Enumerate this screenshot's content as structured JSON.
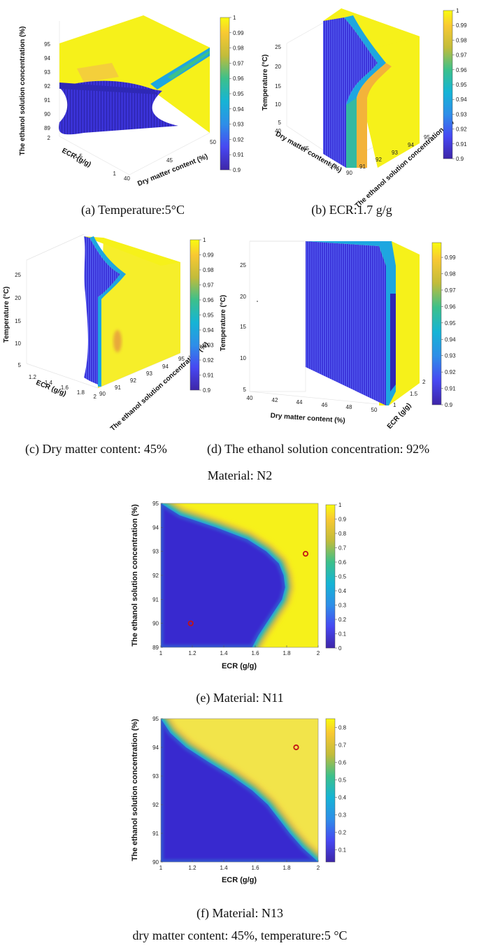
{
  "colors": {
    "yellow": "#f6f11a",
    "blue": "#3b2fd8",
    "cyan": "#1ea6e0",
    "orange": "#f3b33a",
    "green": "#3cbf8c",
    "marker": "#c21414"
  },
  "captions": {
    "a": "(a) Temperature:5°C",
    "b": "(b) ECR:1.7 g/g",
    "c": "(c) Dry matter content: 45%",
    "d": "(d) The ethanol solution concentration: 92%",
    "n2": "Material: N2",
    "e": "(e) Material: N11",
    "f": "(f) Material: N13",
    "footer": "dry matter content: 45%, temperature:5 °C"
  },
  "chart_data": [
    {
      "id": "a",
      "type": "heatmap",
      "title": "Temperature:5°C",
      "axes_labels": {
        "x": "Dry matter content (%)",
        "y": "ECR (g/g)",
        "z": "The ethanol solution concentration (%)"
      },
      "x_ticks": [
        "40",
        "45",
        "50"
      ],
      "y_ticks": [
        "1",
        "1.5",
        "2"
      ],
      "z_ticks": [
        "89",
        "90",
        "91",
        "92",
        "93",
        "94",
        "95"
      ],
      "colorbar": {
        "min": 0.9,
        "max": 1,
        "ticks": [
          "0.9",
          "0.91",
          "0.92",
          "0.93",
          "0.94",
          "0.95",
          "0.96",
          "0.97",
          "0.98",
          "0.99",
          "1"
        ]
      }
    },
    {
      "id": "b",
      "type": "heatmap",
      "title": "ECR:1.7 g/g",
      "axes_labels": {
        "x": "Dry matter content (%)",
        "y": "The ethanol solution concentration (%)",
        "z": "Temperature (°C)"
      },
      "x_ticks": [
        "40",
        "45",
        "50"
      ],
      "y_ticks": [
        "90",
        "91",
        "92",
        "93",
        "94",
        "95"
      ],
      "z_ticks": [
        "5",
        "10",
        "15",
        "20",
        "25"
      ],
      "colorbar": {
        "min": 0.9,
        "max": 1,
        "ticks": [
          "0.9",
          "0.91",
          "0.92",
          "0.93",
          "0.94",
          "0.95",
          "0.96",
          "0.97",
          "0.98",
          "0.99",
          "1"
        ]
      }
    },
    {
      "id": "c",
      "type": "heatmap",
      "title": "Dry matter content: 45%",
      "axes_labels": {
        "x": "ECR (g/g)",
        "y": "The ethanol solution concentration (%)",
        "z": "Temperature (°C)"
      },
      "x_ticks": [
        "1.2",
        "1.4",
        "1.6",
        "1.8",
        "2"
      ],
      "y_ticks": [
        "90",
        "91",
        "92",
        "93",
        "94",
        "95"
      ],
      "z_ticks": [
        "5",
        "10",
        "15",
        "20",
        "25"
      ],
      "colorbar": {
        "min": 0.9,
        "max": 1,
        "ticks": [
          "0.9",
          "0.91",
          "0.92",
          "0.93",
          "0.94",
          "0.95",
          "0.96",
          "0.97",
          "0.98",
          "0.99",
          "1"
        ]
      }
    },
    {
      "id": "d",
      "type": "heatmap",
      "title": "The ethanol solution concentration: 92%",
      "axes_labels": {
        "x": "Dry matter content (%)",
        "y": "ECR (g/g)",
        "z": "Temperature (°C)"
      },
      "x_ticks": [
        "40",
        "42",
        "44",
        "46",
        "48",
        "50"
      ],
      "y_ticks": [
        "1",
        "1.5",
        "2"
      ],
      "z_ticks": [
        "5",
        "10",
        "15",
        "20",
        "25"
      ],
      "colorbar": {
        "min": 0.9,
        "max": 0.999,
        "ticks": [
          "0.9",
          "0.91",
          "0.92",
          "0.93",
          "0.94",
          "0.95",
          "0.96",
          "0.97",
          "0.98",
          "0.99"
        ]
      }
    },
    {
      "id": "e",
      "type": "heatmap",
      "title": "Material: N11",
      "xlabel": "ECR (g/g)",
      "ylabel": "The ethanol solution concentration (%)",
      "xlim": [
        1,
        2
      ],
      "ylim": [
        89,
        95
      ],
      "x_ticks": [
        "1",
        "1.2",
        "1.4",
        "1.6",
        "1.8",
        "2"
      ],
      "y_ticks": [
        "89",
        "90",
        "91",
        "92",
        "93",
        "94",
        "95"
      ],
      "boundary": [
        {
          "y": 95,
          "x": 1.0
        },
        {
          "y": 94.5,
          "x": 1.12
        },
        {
          "y": 94,
          "x": 1.35
        },
        {
          "y": 93.5,
          "x": 1.55
        },
        {
          "y": 93,
          "x": 1.67
        },
        {
          "y": 92.5,
          "x": 1.75
        },
        {
          "y": 92,
          "x": 1.78
        },
        {
          "y": 91.5,
          "x": 1.79
        },
        {
          "y": 91,
          "x": 1.77
        },
        {
          "y": 90.5,
          "x": 1.72
        },
        {
          "y": 90,
          "x": 1.67
        },
        {
          "y": 89.5,
          "x": 1.62
        },
        {
          "y": 89,
          "x": 1.58
        }
      ],
      "markers": [
        {
          "x": 1.19,
          "y": 90.0
        },
        {
          "x": 1.92,
          "y": 92.9
        }
      ],
      "colorbar": {
        "min": 0,
        "max": 1,
        "ticks": [
          "0",
          "0.1",
          "0.2",
          "0.3",
          "0.4",
          "0.5",
          "0.6",
          "0.7",
          "0.8",
          "0.9",
          "1"
        ]
      }
    },
    {
      "id": "f",
      "type": "heatmap",
      "title": "Material: N13",
      "xlabel": "ECR (g/g)",
      "ylabel": "The ethanol solution concentration (%)",
      "xlim": [
        1,
        2
      ],
      "ylim": [
        90,
        95
      ],
      "x_ticks": [
        "1",
        "1.2",
        "1.4",
        "1.6",
        "1.8",
        "2"
      ],
      "y_ticks": [
        "90",
        "91",
        "92",
        "93",
        "94",
        "95"
      ],
      "boundary": [
        {
          "y": 95,
          "x": 1.0
        },
        {
          "y": 94.5,
          "x": 1.06
        },
        {
          "y": 94,
          "x": 1.16
        },
        {
          "y": 93.5,
          "x": 1.3
        },
        {
          "y": 93,
          "x": 1.45
        },
        {
          "y": 92.5,
          "x": 1.58
        },
        {
          "y": 92,
          "x": 1.68
        },
        {
          "y": 91.5,
          "x": 1.75
        },
        {
          "y": 91,
          "x": 1.82
        },
        {
          "y": 90.5,
          "x": 1.9
        },
        {
          "y": 90,
          "x": 2.0
        }
      ],
      "markers": [
        {
          "x": 1.86,
          "y": 94.0
        }
      ],
      "colorbar": {
        "min": 0.03,
        "max": 0.85,
        "ticks": [
          "0.1",
          "0.2",
          "0.3",
          "0.4",
          "0.5",
          "0.6",
          "0.7",
          "0.8"
        ]
      }
    }
  ]
}
